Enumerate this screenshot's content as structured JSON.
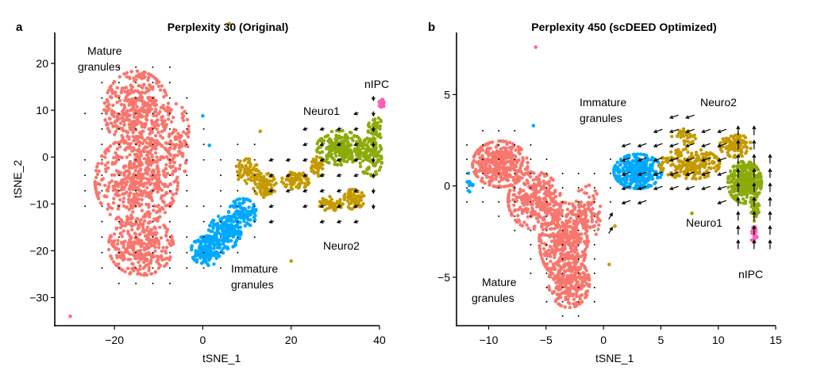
{
  "colors": {
    "Mature granules": "#F8766D",
    "Immature granules": "#00A9FF",
    "Neuro1": "#8DAA0B",
    "Neuro2": "#C49A00",
    "nIPC": "#FF5FB5",
    "axis": "#000000"
  },
  "chart_data": [
    {
      "type": "scatter",
      "panel_letter": "a",
      "title": "Perplexity 30 (Original)",
      "xlabel": "tSNE_1",
      "ylabel": "tSNE_2",
      "xlim": [
        -33.5,
        40
      ],
      "ylim": [
        -36,
        26.6
      ],
      "xticks": [
        -20,
        0,
        20,
        40
      ],
      "yticks": [
        20,
        10,
        0,
        -10,
        -20,
        -30
      ],
      "grid": false,
      "annotations": {
        "mature_1": "Mature",
        "mature_2": "granules",
        "immature_1": "Immature",
        "immature_2": "granules",
        "neuro1": "Neuro1",
        "neuro2": "Neuro2",
        "nipc": "nIPC"
      },
      "clusters": [
        {
          "name": "Mature granules",
          "blobs": [
            [
              -15,
              10,
              7,
              8,
              420
            ],
            [
              -15,
              -5,
              9,
              9,
              560
            ],
            [
              -14,
              -19,
              7,
              6,
              320
            ],
            [
              -6,
              3,
              3,
              8,
              90
            ]
          ]
        },
        {
          "name": "Immature granules",
          "blobs": [
            [
              1,
              -20,
              3.5,
              3,
              170
            ],
            [
              5,
              -16,
              3.5,
              3.5,
              170
            ],
            [
              9,
              -12,
              3,
              3,
              110
            ]
          ]
        },
        {
          "name": "Neuro2",
          "blobs": [
            [
              10,
              -3,
              2.5,
              2.5,
              60
            ],
            [
              14,
              -6,
              2.5,
              2.5,
              90
            ],
            [
              21,
              -5,
              3,
              1.8,
              80
            ],
            [
              26,
              -2,
              2,
              2,
              40
            ],
            [
              29,
              -10,
              2.5,
              1.5,
              50
            ],
            [
              34,
              -9,
              2.5,
              2,
              60
            ]
          ]
        },
        {
          "name": "Neuro1",
          "blobs": [
            [
              31,
              2,
              5,
              3.5,
              240
            ],
            [
              38,
              0,
              2.5,
              4,
              110
            ],
            [
              39,
              6,
              1.5,
              3,
              60
            ]
          ]
        },
        {
          "name": "nIPC",
          "blobs": [
            [
              40.5,
              11.5,
              0.7,
              0.8,
              25
            ]
          ]
        }
      ],
      "outliers": [
        [
          "nIPC",
          -30,
          -34
        ],
        [
          "Neuro2",
          20,
          -22.2
        ],
        [
          "Neuro2",
          6,
          28.5
        ],
        [
          "Neuro2",
          13,
          5.5
        ],
        [
          "Immature granules",
          0,
          8.8
        ],
        [
          "Immature granules",
          1.5,
          2.5
        ]
      ],
      "field": {
        "x0": -30.5,
        "dx": 3.84,
        "nx": 20,
        "y0": 22.5,
        "dy": -3.3,
        "ny": 16,
        "zones": [
          {
            "x": [
              12,
              36
            ],
            "y": [
              -15,
              12
            ],
            "dir": [
              -1,
              -0.35
            ],
            "len": 0.5
          },
          {
            "x": [
              36,
              44
            ],
            "y": [
              -15,
              13
            ],
            "dir": [
              0,
              -1
            ],
            "len": 0.5
          }
        ]
      }
    },
    {
      "type": "scatter",
      "panel_letter": "b",
      "title": "Perplexity 450 (scDEED Optimized)",
      "xlabel": "tSNE_1",
      "ylabel": "",
      "xlim": [
        -12.8,
        15
      ],
      "ylim": [
        -7.65,
        8.4
      ],
      "xticks": [
        -10,
        -5,
        0,
        5,
        10,
        15
      ],
      "yticks": [
        5,
        0,
        -5
      ],
      "grid": false,
      "annotations": {
        "mature_1": "Mature",
        "mature_2": "granules",
        "immature_1": "Immature",
        "immature_2": "granules",
        "neuro1": "Neuro1",
        "neuro2": "Neuro2",
        "nipc": "nIPC"
      },
      "clusters": [
        {
          "name": "Mature granules",
          "blobs": [
            [
              -9,
              1.2,
              2.3,
              1.2,
              380
            ],
            [
              -6,
              -0.8,
              2.2,
              1.5,
              300
            ],
            [
              -3.5,
              -3,
              2,
              2,
              420
            ],
            [
              -3,
              -5.3,
              1.7,
              1.3,
              250
            ],
            [
              -1.5,
              -1.5,
              1.2,
              1.5,
              100
            ]
          ]
        },
        {
          "name": "Immature granules",
          "blobs": [
            [
              3,
              0.8,
              2,
              0.9,
              330
            ],
            [
              -11.5,
              0.2,
              0.4,
              0.6,
              10
            ]
          ]
        },
        {
          "name": "Neuro2",
          "blobs": [
            [
              7.5,
              1.2,
              2.5,
              0.8,
              230
            ],
            [
              11.5,
              2.2,
              1.3,
              0.6,
              110
            ],
            [
              7,
              2.7,
              1,
              0.4,
              30
            ]
          ]
        },
        {
          "name": "Neuro1",
          "blobs": [
            [
              12.3,
              0.2,
              1.4,
              1.1,
              320
            ],
            [
              13.2,
              -1.1,
              0.35,
              0.8,
              40
            ]
          ]
        },
        {
          "name": "nIPC",
          "blobs": [
            [
              13.1,
              -2.6,
              0.3,
              0.45,
              30
            ]
          ]
        }
      ],
      "outliers": [
        [
          "nIPC",
          -5.9,
          7.6
        ],
        [
          "Neuro2",
          0.5,
          -4.3
        ],
        [
          "Neuro2",
          1,
          -2.2
        ],
        [
          "Neuro1",
          7.7,
          -1.5
        ],
        [
          "Immature granules",
          -6.1,
          3.3
        ]
      ],
      "field": {
        "x0": -11.9,
        "dx": 1.39,
        "nx": 20,
        "y0": 3.8,
        "dy": -0.78,
        "ny": 15,
        "zones": [
          {
            "x": [
              1.5,
              11
            ],
            "y": [
              -1.3,
              4.2
            ],
            "dir": [
              -1,
              -0.35
            ],
            "len": 1
          },
          {
            "x": [
              0.5,
              3.3
            ],
            "y": [
              -3.3,
              -1.3
            ],
            "dir": [
              0.6,
              1
            ],
            "len": 0.8
          },
          {
            "x": [
              11,
              15
            ],
            "y": [
              -3.5,
              3.5
            ],
            "dir": [
              0,
              1
            ],
            "len": 1
          }
        ]
      }
    }
  ]
}
